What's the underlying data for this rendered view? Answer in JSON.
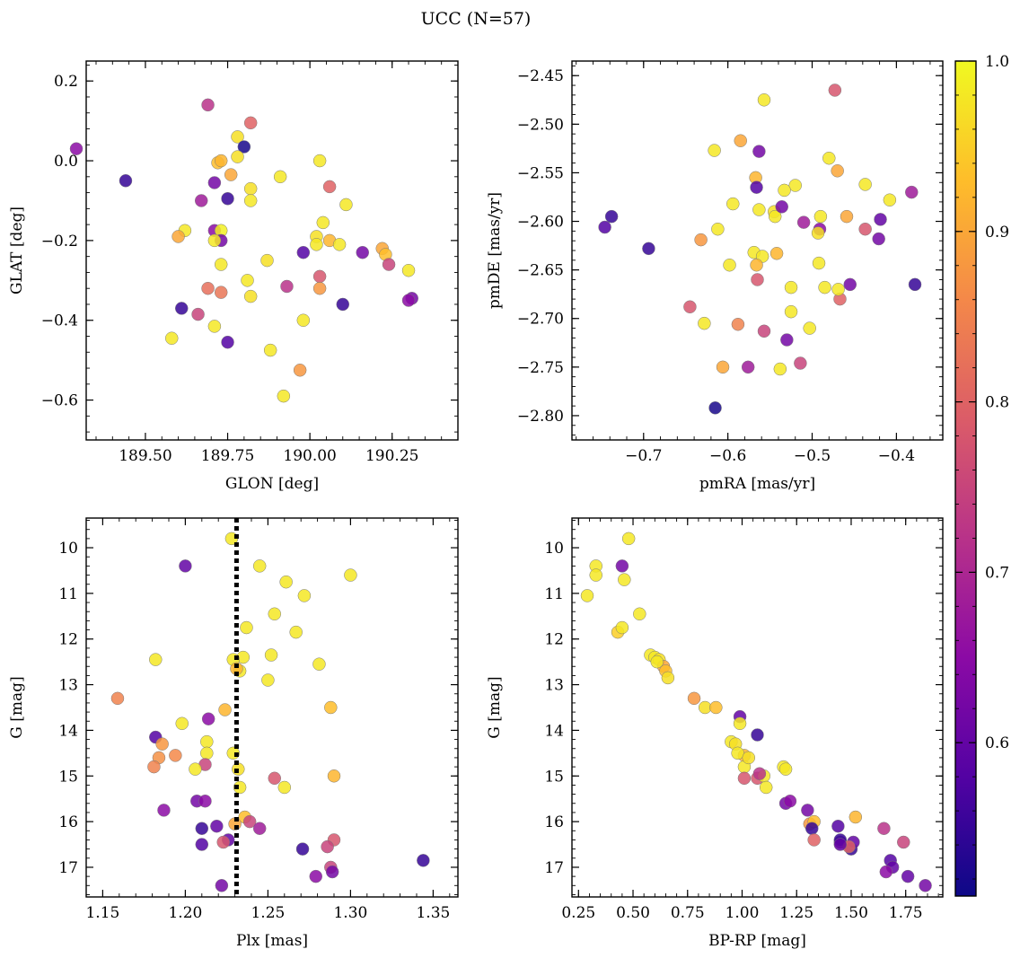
{
  "title": "UCC (N=57)",
  "colormap": {
    "name": "plasma",
    "stops": [
      "#0d0887",
      "#5302a3",
      "#8b0aa5",
      "#b83289",
      "#db5c68",
      "#f48849",
      "#febd2a",
      "#f0f921"
    ],
    "range": [
      0.51,
      1.0
    ],
    "ticks": [
      0.6,
      0.7,
      0.8,
      0.9,
      1.0
    ],
    "tick_labels": [
      "0.6",
      "0.7",
      "0.8",
      "0.9",
      "1.0"
    ]
  },
  "chart_data": [
    {
      "type": "scatter",
      "xlabel": "GLON [deg]",
      "ylabel": "GLAT [deg]",
      "xlim": [
        189.32,
        190.45
      ],
      "ylim": [
        -0.7,
        0.25
      ],
      "xticks": [
        189.5,
        189.75,
        190.0,
        190.25
      ],
      "xtick_labels": [
        "189.50",
        "189.75",
        "190.00",
        "190.25"
      ],
      "yticks": [
        0.2,
        0.0,
        -0.2,
        -0.4,
        -0.6
      ],
      "ytick_labels": [
        "0.2",
        "0.0",
        "−0.2",
        "−0.4",
        "−0.6"
      ],
      "x": [
        189.44,
        189.69,
        189.82,
        189.78,
        189.8,
        189.29,
        189.72,
        189.73,
        189.76,
        189.78,
        189.71,
        189.67,
        189.75,
        189.82,
        189.82,
        189.91,
        190.06,
        190.11,
        189.62,
        189.6,
        189.71,
        189.73,
        189.73,
        189.71,
        190.04,
        190.02,
        190.06,
        190.09,
        190.16,
        190.22,
        190.23,
        189.87,
        189.98,
        190.3,
        190.31,
        190.3,
        190.24,
        190.03,
        190.03,
        189.73,
        189.81,
        189.82,
        189.93,
        189.73,
        190.02,
        190.1,
        189.61,
        189.66,
        189.71,
        189.58,
        189.75,
        189.98,
        189.88,
        189.97,
        189.92,
        190.03,
        189.69
      ],
      "y": [
        -0.05,
        0.14,
        0.095,
        0.06,
        0.035,
        0.03,
        -0.005,
        0.0,
        -0.035,
        0.01,
        -0.055,
        -0.1,
        -0.095,
        -0.07,
        -0.1,
        -0.04,
        -0.065,
        -0.11,
        -0.175,
        -0.19,
        -0.175,
        -0.175,
        -0.2,
        -0.2,
        -0.155,
        -0.19,
        -0.2,
        -0.21,
        -0.23,
        -0.22,
        -0.235,
        -0.25,
        -0.23,
        -0.275,
        -0.345,
        -0.35,
        -0.26,
        -0.29,
        -0.32,
        -0.26,
        -0.3,
        -0.34,
        -0.315,
        -0.33,
        -0.21,
        -0.36,
        -0.37,
        -0.385,
        -0.415,
        -0.445,
        -0.455,
        -0.4,
        -0.475,
        -0.525,
        -0.59,
        0.0,
        -0.32
      ],
      "color": [
        0.55,
        0.72,
        0.8,
        0.97,
        0.52,
        0.65,
        0.93,
        0.92,
        0.9,
        0.97,
        0.62,
        0.68,
        0.55,
        0.97,
        0.98,
        0.98,
        0.8,
        0.98,
        0.98,
        0.9,
        0.65,
        0.99,
        0.62,
        0.98,
        0.98,
        0.97,
        0.92,
        0.98,
        0.62,
        0.9,
        0.93,
        0.97,
        0.58,
        0.98,
        0.62,
        0.65,
        0.75,
        0.78,
        0.88,
        0.98,
        0.98,
        0.97,
        0.72,
        0.83,
        0.98,
        0.55,
        0.55,
        0.75,
        0.98,
        0.98,
        0.58,
        0.98,
        0.98,
        0.88,
        0.98,
        0.98,
        0.82
      ]
    },
    {
      "type": "scatter",
      "xlabel": "pmRA [mas/yr]",
      "ylabel": "pmDE [mas/yr]",
      "xlim": [
        -0.785,
        -0.345
      ],
      "ylim": [
        -2.825,
        -2.435
      ],
      "xticks": [
        -0.7,
        -0.6,
        -0.5,
        -0.4
      ],
      "xtick_labels": [
        "−0.7",
        "−0.6",
        "−0.5",
        "−0.4"
      ],
      "yticks": [
        -2.45,
        -2.5,
        -2.55,
        -2.6,
        -2.65,
        -2.7,
        -2.75,
        -2.8
      ],
      "ytick_labels": [
        "−2.45",
        "−2.50",
        "−2.55",
        "−2.60",
        "−2.65",
        "−2.70",
        "−2.75",
        "−2.80"
      ],
      "x": [
        -0.473,
        -0.557,
        -0.585,
        -0.616,
        -0.563,
        -0.567,
        -0.566,
        -0.48,
        -0.47,
        -0.52,
        -0.545,
        -0.437,
        -0.533,
        -0.408,
        -0.594,
        -0.563,
        -0.544,
        -0.536,
        -0.49,
        -0.459,
        -0.419,
        -0.738,
        -0.746,
        -0.51,
        -0.491,
        -0.437,
        -0.421,
        -0.382,
        -0.612,
        -0.632,
        -0.694,
        -0.569,
        -0.559,
        -0.542,
        -0.598,
        -0.566,
        -0.492,
        -0.485,
        -0.455,
        -0.378,
        -0.525,
        -0.467,
        -0.525,
        -0.565,
        -0.469,
        -0.645,
        -0.628,
        -0.503,
        -0.588,
        -0.557,
        -0.53,
        -0.606,
        -0.576,
        -0.538,
        -0.514,
        -0.615,
        -0.493
      ],
      "y": [
        -2.465,
        -2.475,
        -2.517,
        -2.527,
        -2.528,
        -2.555,
        -2.565,
        -2.535,
        -2.548,
        -2.563,
        -2.59,
        -2.562,
        -2.568,
        -2.578,
        -2.582,
        -2.588,
        -2.595,
        -2.585,
        -2.595,
        -2.595,
        -2.598,
        -2.595,
        -2.606,
        -2.601,
        -2.608,
        -2.608,
        -2.618,
        -2.57,
        -2.608,
        -2.619,
        -2.628,
        -2.632,
        -2.636,
        -2.633,
        -2.645,
        -2.645,
        -2.643,
        -2.668,
        -2.665,
        -2.665,
        -2.668,
        -2.68,
        -2.693,
        -2.66,
        -2.67,
        -2.688,
        -2.705,
        -2.71,
        -2.706,
        -2.713,
        -2.722,
        -2.75,
        -2.75,
        -2.752,
        -2.746,
        -2.792,
        -2.612
      ],
      "color": [
        0.78,
        0.98,
        0.9,
        0.98,
        0.62,
        0.92,
        0.58,
        0.98,
        0.9,
        0.98,
        0.97,
        0.98,
        0.98,
        0.98,
        0.98,
        0.98,
        0.98,
        0.62,
        0.98,
        0.9,
        0.6,
        0.55,
        0.58,
        0.68,
        0.65,
        0.78,
        0.62,
        0.68,
        0.98,
        0.88,
        0.55,
        0.98,
        0.98,
        0.92,
        0.98,
        0.92,
        0.98,
        0.98,
        0.62,
        0.55,
        0.98,
        0.8,
        0.98,
        0.78,
        0.98,
        0.78,
        0.98,
        0.98,
        0.85,
        0.75,
        0.62,
        0.9,
        0.68,
        0.98,
        0.75,
        0.52,
        0.97
      ]
    },
    {
      "type": "scatter",
      "xlabel": "Plx [mas]",
      "ylabel": "G [mag]",
      "xlim": [
        1.14,
        1.365
      ],
      "ylim": [
        17.65,
        9.35
      ],
      "inverted_y": true,
      "vline": 1.231,
      "xticks": [
        1.15,
        1.2,
        1.25,
        1.3,
        1.35
      ],
      "xtick_labels": [
        "1.15",
        "1.20",
        "1.25",
        "1.30",
        "1.35"
      ],
      "yticks": [
        10,
        11,
        12,
        13,
        14,
        15,
        16,
        17
      ],
      "ytick_labels": [
        "10",
        "11",
        "12",
        "13",
        "14",
        "15",
        "16",
        "17"
      ],
      "x": [
        1.228,
        1.2,
        1.245,
        1.3,
        1.261,
        1.272,
        1.254,
        1.237,
        1.267,
        1.182,
        1.235,
        1.252,
        1.229,
        1.233,
        1.281,
        1.25,
        1.159,
        1.288,
        1.214,
        1.198,
        1.224,
        1.182,
        1.213,
        1.213,
        1.186,
        1.184,
        1.194,
        1.212,
        1.181,
        1.206,
        1.229,
        1.232,
        1.254,
        1.29,
        1.26,
        1.233,
        1.207,
        1.212,
        1.187,
        1.236,
        1.239,
        1.23,
        1.245,
        1.219,
        1.21,
        1.226,
        1.223,
        1.21,
        1.29,
        1.286,
        1.271,
        1.344,
        1.288,
        1.289,
        1.279,
        1.222,
        1.231
      ],
      "y": [
        9.8,
        10.4,
        10.4,
        10.6,
        10.75,
        11.05,
        11.45,
        11.75,
        11.85,
        12.45,
        12.4,
        12.35,
        12.45,
        12.7,
        12.55,
        12.9,
        13.3,
        13.5,
        13.75,
        13.85,
        13.55,
        14.15,
        14.25,
        14.5,
        14.3,
        14.6,
        14.55,
        14.75,
        14.8,
        14.85,
        14.5,
        14.85,
        15.05,
        15.0,
        15.25,
        15.25,
        15.55,
        15.55,
        15.75,
        15.9,
        16.0,
        16.05,
        16.15,
        16.1,
        16.15,
        16.4,
        16.45,
        16.5,
        16.4,
        16.55,
        16.6,
        16.85,
        17.0,
        17.1,
        17.2,
        17.4,
        12.65
      ],
      "color": [
        0.98,
        0.6,
        0.98,
        0.98,
        0.98,
        0.98,
        0.98,
        0.98,
        0.98,
        0.98,
        0.98,
        0.98,
        0.98,
        0.98,
        0.98,
        0.98,
        0.85,
        0.93,
        0.65,
        0.98,
        0.92,
        0.58,
        0.98,
        0.98,
        0.88,
        0.87,
        0.86,
        0.75,
        0.85,
        0.98,
        0.98,
        0.97,
        0.78,
        0.92,
        0.98,
        0.98,
        0.62,
        0.65,
        0.65,
        0.93,
        0.75,
        0.9,
        0.68,
        0.6,
        0.55,
        0.6,
        0.78,
        0.58,
        0.78,
        0.75,
        0.55,
        0.55,
        0.75,
        0.62,
        0.65,
        0.62,
        0.92
      ]
    },
    {
      "type": "scatter",
      "xlabel": "BP-RP [mag]",
      "ylabel": "G [mag]",
      "xlim": [
        0.22,
        1.92
      ],
      "ylim": [
        17.65,
        9.35
      ],
      "inverted_y": true,
      "xticks": [
        0.25,
        0.5,
        0.75,
        1.0,
        1.25,
        1.5,
        1.75
      ],
      "xtick_labels": [
        "0.25",
        "0.50",
        "0.75",
        "1.00",
        "1.25",
        "1.50",
        "1.75"
      ],
      "yticks": [
        10,
        11,
        12,
        13,
        14,
        15,
        16,
        17
      ],
      "ytick_labels": [
        "10",
        "11",
        "12",
        "13",
        "14",
        "15",
        "16",
        "17"
      ],
      "x": [
        0.48,
        0.33,
        0.45,
        0.33,
        0.46,
        0.29,
        0.53,
        0.43,
        0.45,
        0.58,
        0.6,
        0.62,
        0.64,
        0.61,
        0.65,
        0.66,
        0.78,
        0.83,
        0.88,
        0.99,
        0.99,
        0.95,
        0.97,
        1.01,
        1.07,
        0.98,
        1.01,
        1.03,
        1.07,
        1.1,
        1.08,
        1.11,
        1.19,
        1.2,
        1.2,
        1.22,
        1.3,
        1.31,
        1.33,
        1.32,
        1.44,
        1.45,
        1.45,
        1.5,
        1.52,
        1.51,
        1.49,
        1.65,
        1.68,
        1.69,
        1.74,
        1.66,
        1.76,
        1.84,
        1.33,
        1.45,
        1.01
      ],
      "y": [
        9.8,
        10.4,
        10.4,
        10.6,
        10.7,
        11.05,
        11.45,
        11.85,
        11.75,
        12.35,
        12.4,
        12.45,
        12.6,
        12.5,
        12.7,
        12.85,
        13.3,
        13.5,
        13.5,
        13.7,
        13.85,
        14.25,
        14.3,
        14.55,
        14.1,
        14.5,
        14.8,
        14.6,
        15.05,
        15.0,
        14.95,
        15.25,
        14.8,
        14.85,
        15.6,
        15.55,
        15.75,
        16.05,
        16.0,
        16.15,
        16.1,
        16.45,
        16.4,
        16.6,
        15.9,
        16.45,
        16.55,
        16.15,
        16.85,
        17.0,
        16.45,
        17.1,
        17.2,
        17.4,
        16.4,
        16.5,
        15.05
      ],
      "color": [
        0.98,
        0.98,
        0.62,
        0.98,
        0.98,
        0.98,
        0.98,
        0.95,
        0.98,
        0.98,
        0.98,
        0.97,
        0.9,
        0.98,
        0.93,
        0.97,
        0.88,
        0.97,
        0.93,
        0.6,
        0.98,
        0.98,
        0.97,
        0.92,
        0.55,
        0.98,
        0.98,
        0.97,
        0.78,
        0.98,
        0.72,
        0.98,
        0.98,
        0.98,
        0.62,
        0.65,
        0.62,
        0.88,
        0.93,
        0.55,
        0.58,
        0.65,
        0.55,
        0.55,
        0.92,
        0.6,
        0.8,
        0.72,
        0.58,
        0.6,
        0.75,
        0.65,
        0.6,
        0.62,
        0.8,
        0.6,
        0.78
      ]
    }
  ]
}
